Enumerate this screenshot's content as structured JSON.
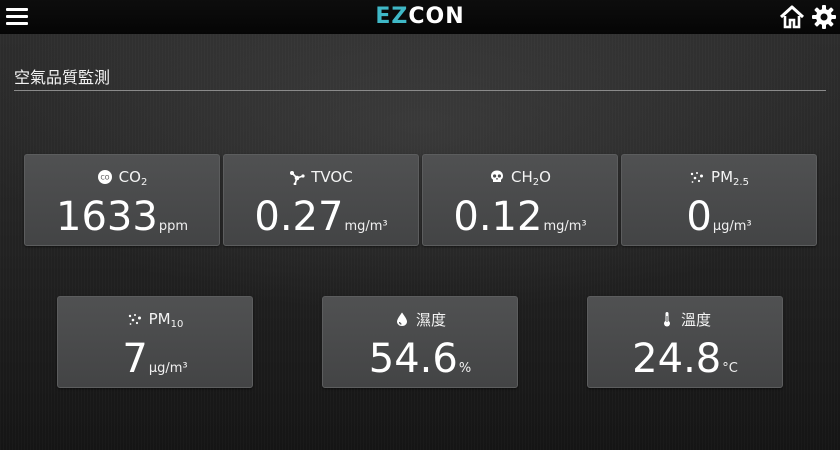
{
  "header": {
    "logo_ez": "EZ",
    "logo_rest": "CON"
  },
  "page": {
    "title": "空氣品質監測"
  },
  "cards": [
    {
      "label": "CO",
      "label_sub": "2",
      "value": "1633",
      "unit": "ppm",
      "icon": "co2-icon"
    },
    {
      "label": "TVOC",
      "label_sub": "",
      "value": "0.27",
      "unit": "mg/m³",
      "icon": "molecule-icon"
    },
    {
      "label": "CH",
      "label_sub": "2",
      "label_tail": "O",
      "value": "0.12",
      "unit": "mg/m³",
      "icon": "skull-icon"
    },
    {
      "label": "PM",
      "label_sub": "2.5",
      "value": "0",
      "unit": "μg/m³",
      "icon": "particles-icon"
    },
    {
      "label": "PM",
      "label_sub": "10",
      "value": "7",
      "unit": "μg/m³",
      "icon": "particles-icon"
    },
    {
      "label": "濕度",
      "label_sub": "",
      "value": "54.6",
      "unit": "%",
      "icon": "water-drop-icon"
    },
    {
      "label": "溫度",
      "label_sub": "",
      "value": "24.8",
      "unit": "°C",
      "icon": "thermometer-icon"
    }
  ],
  "colors": {
    "logo_accent": "#3fb8c7",
    "card_bg": "#4a4b4c"
  }
}
